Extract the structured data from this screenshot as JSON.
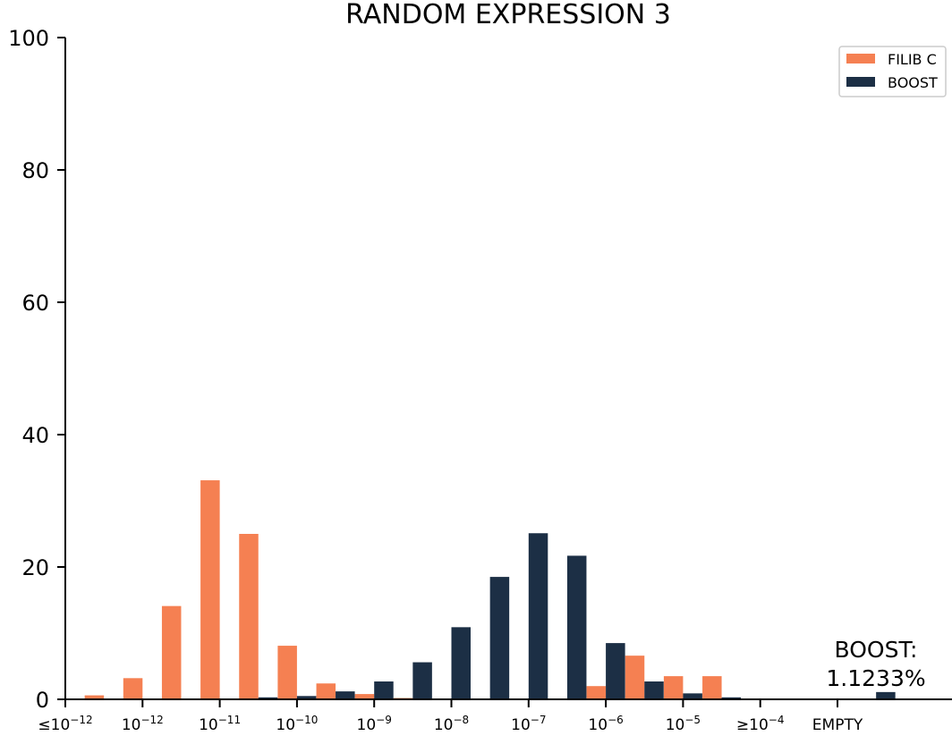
{
  "chart_data": {
    "type": "bar",
    "title": "RANDOM EXPRESSION 3",
    "xlabel": "",
    "ylabel": "",
    "ylim": [
      0,
      100
    ],
    "yticks": [
      "0",
      "20",
      "40",
      "60",
      "80",
      "100"
    ],
    "x_tick_labels": [
      {
        "pre": "≤",
        "base": "10",
        "exp": "−12"
      },
      {
        "pre": "",
        "base": "10",
        "exp": "−12"
      },
      {
        "pre": "",
        "base": "10",
        "exp": "−11"
      },
      {
        "pre": "",
        "base": "10",
        "exp": "−10"
      },
      {
        "pre": "",
        "base": "10",
        "exp": "−9"
      },
      {
        "pre": "",
        "base": "10",
        "exp": "−8"
      },
      {
        "pre": "",
        "base": "10",
        "exp": "−7"
      },
      {
        "pre": "",
        "base": "10",
        "exp": "−6"
      },
      {
        "pre": "",
        "base": "10",
        "exp": "−5"
      },
      {
        "pre": "≥",
        "base": "10",
        "exp": "−4"
      },
      {
        "pre": "",
        "base": "EMPTY",
        "exp": ""
      }
    ],
    "legend_position": "top-right",
    "series": [
      {
        "name": "FILIB C",
        "color": "#f58052",
        "values": [
          0,
          0.6,
          3.2,
          14.1,
          33.1,
          25.0,
          8.1,
          2.4,
          0.8,
          0.2,
          0,
          0,
          0,
          0.1,
          2.0,
          6.6,
          3.5,
          3.5,
          0,
          0,
          0,
          0
        ]
      },
      {
        "name": "BOOST",
        "color": "#1c2f45",
        "values": [
          0,
          0,
          0,
          0,
          0,
          0.3,
          0.5,
          1.2,
          2.7,
          5.6,
          10.9,
          18.5,
          25.1,
          21.7,
          8.5,
          2.7,
          0.9,
          0.3,
          0,
          0,
          0,
          1.1
        ]
      }
    ],
    "annotation": {
      "line1": "BOOST:",
      "line2": "1.1233%"
    }
  }
}
